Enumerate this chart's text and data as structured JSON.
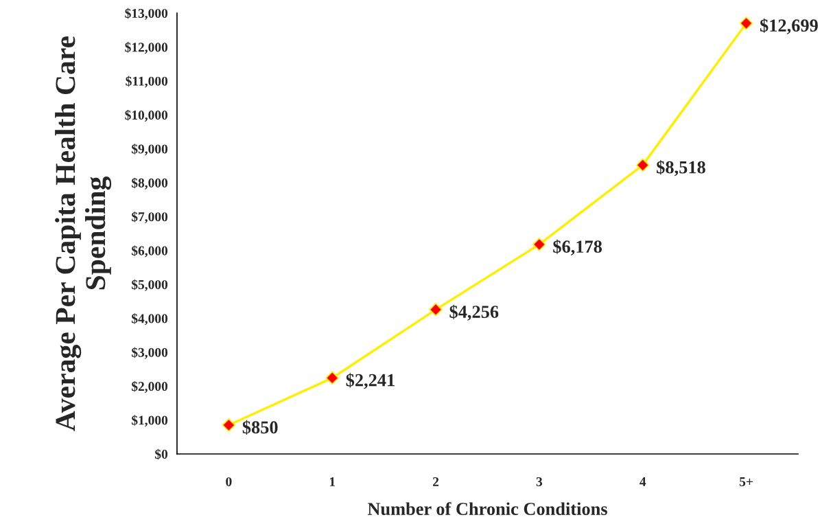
{
  "chart_data": {
    "type": "line",
    "xlabel": "Number of Chronic Conditions",
    "ylabel": "Average Per Capita Health Care Spending",
    "categories": [
      "0",
      "1",
      "2",
      "3",
      "4",
      "5+"
    ],
    "series": [
      {
        "color": "#ffee00",
        "colors": [
          "#ff0000",
          "#ff0000",
          "#ff0000",
          "#ff0000",
          "#ff0000",
          "#ff0000"
        ],
        "values": [
          850,
          2241,
          4256,
          6178,
          8518,
          12699
        ],
        "value_labels": [
          "$850",
          "$2,241",
          "$4,256",
          "$6,178",
          "$8,518",
          "$12,699"
        ]
      }
    ],
    "ylim": [
      0,
      13000
    ],
    "yticks": [
      {
        "value": 0,
        "label": "$0"
      },
      {
        "value": 1000,
        "label": "$1,000"
      },
      {
        "value": 2000,
        "label": "$2,000"
      },
      {
        "value": 3000,
        "label": "$3,000"
      },
      {
        "value": 4000,
        "label": "$4,000"
      },
      {
        "value": 5000,
        "label": "$5,000"
      },
      {
        "value": 6000,
        "label": "$6,000"
      },
      {
        "value": 7000,
        "label": "$7,000"
      },
      {
        "value": 8000,
        "label": "$8,000"
      },
      {
        "value": 9000,
        "label": "$9,000"
      },
      {
        "value": 10000,
        "label": "$10,000"
      },
      {
        "value": 11000,
        "label": "$11,000"
      },
      {
        "value": 12000,
        "label": "$12,000"
      },
      {
        "value": 13000,
        "label": "$13,000"
      }
    ],
    "grid": false,
    "legend": false,
    "marker": "diamond",
    "line_style": "solid"
  }
}
